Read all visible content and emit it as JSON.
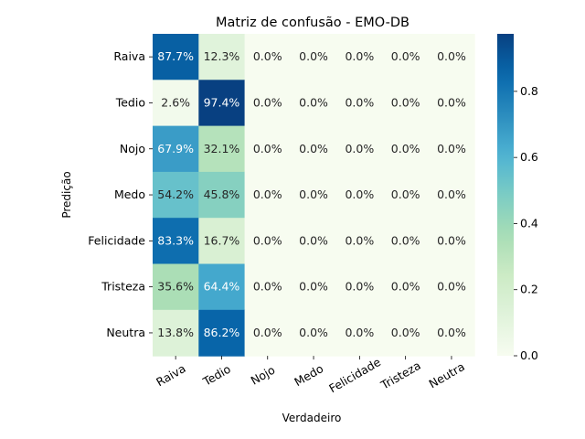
{
  "chart_data": {
    "type": "heatmap",
    "title": "Matriz de confusão - EMO-DB",
    "xlabel": "Verdadeiro",
    "ylabel": "Predição",
    "x_categories": [
      "Raiva",
      "Tedio",
      "Nojo",
      "Medo",
      "Felicidade",
      "Tristeza",
      "Neutra"
    ],
    "y_categories": [
      "Raiva",
      "Tedio",
      "Nojo",
      "Medo",
      "Felicidade",
      "Tristeza",
      "Neutra"
    ],
    "values": [
      [
        0.877,
        0.123,
        0.0,
        0.0,
        0.0,
        0.0,
        0.0
      ],
      [
        0.026,
        0.974,
        0.0,
        0.0,
        0.0,
        0.0,
        0.0
      ],
      [
        0.679,
        0.321,
        0.0,
        0.0,
        0.0,
        0.0,
        0.0
      ],
      [
        0.542,
        0.458,
        0.0,
        0.0,
        0.0,
        0.0,
        0.0
      ],
      [
        0.833,
        0.167,
        0.0,
        0.0,
        0.0,
        0.0,
        0.0
      ],
      [
        0.356,
        0.644,
        0.0,
        0.0,
        0.0,
        0.0,
        0.0
      ],
      [
        0.138,
        0.862,
        0.0,
        0.0,
        0.0,
        0.0,
        0.0
      ]
    ],
    "cell_labels": [
      [
        "87.7%",
        "12.3%",
        "0.0%",
        "0.0%",
        "0.0%",
        "0.0%",
        "0.0%"
      ],
      [
        "2.6%",
        "97.4%",
        "0.0%",
        "0.0%",
        "0.0%",
        "0.0%",
        "0.0%"
      ],
      [
        "67.9%",
        "32.1%",
        "0.0%",
        "0.0%",
        "0.0%",
        "0.0%",
        "0.0%"
      ],
      [
        "54.2%",
        "45.8%",
        "0.0%",
        "0.0%",
        "0.0%",
        "0.0%",
        "0.0%"
      ],
      [
        "83.3%",
        "16.7%",
        "0.0%",
        "0.0%",
        "0.0%",
        "0.0%",
        "0.0%"
      ],
      [
        "35.6%",
        "64.4%",
        "0.0%",
        "0.0%",
        "0.0%",
        "0.0%",
        "0.0%"
      ],
      [
        "13.8%",
        "86.2%",
        "0.0%",
        "0.0%",
        "0.0%",
        "0.0%",
        "0.0%"
      ]
    ],
    "colorbar": {
      "colormap": "GnBu",
      "range": [
        0.0,
        0.974
      ],
      "ticks": [
        0.0,
        0.2,
        0.4,
        0.6,
        0.8
      ],
      "tick_labels": [
        "0.0",
        "0.2",
        "0.4",
        "0.6",
        "0.8"
      ]
    },
    "grid": false
  }
}
